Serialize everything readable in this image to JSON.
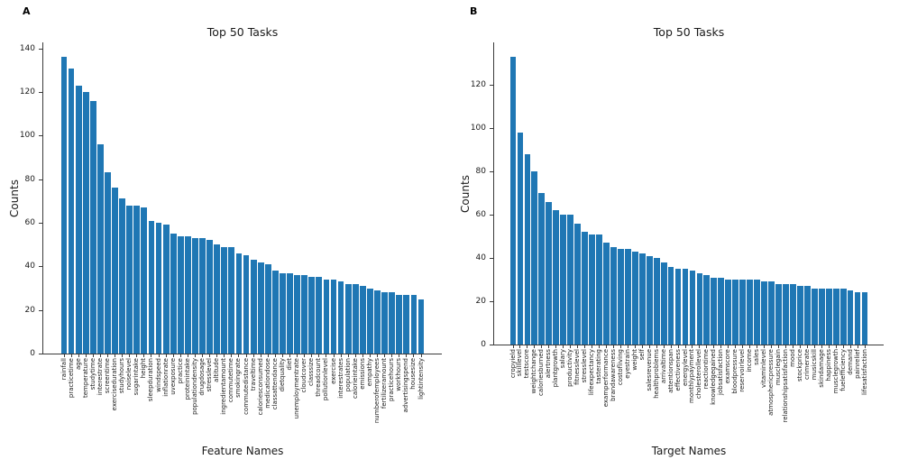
{
  "figure_meta": {
    "background": "#ffffff",
    "bar_color": "#1f77b4"
  },
  "chart_data": [
    {
      "type": "bar",
      "corner_label": "A",
      "title": "Top 50 Tasks",
      "xlabel": "Feature Names",
      "ylabel": "Counts",
      "grid": false,
      "legend": null,
      "yticks": [
        0,
        20,
        40,
        60,
        80,
        100,
        120,
        140
      ],
      "ylim": [
        0,
        142.8
      ],
      "bar_color": "#1f77b4",
      "categories": [
        "rainfall",
        "practicetime",
        "age",
        "temperature",
        "studytime",
        "interestrate",
        "screentime",
        "exerciseduration",
        "studyhours",
        "noiselevel",
        "sugarintake",
        "height",
        "sleepduration",
        "windspeed",
        "inflationrate",
        "uvexposure",
        "practice",
        "proteinintake",
        "populationdensity",
        "drugdosage",
        "stresslevel",
        "altitude",
        "ingredientamount",
        "commutetime",
        "smokingrate",
        "commutedistance",
        "traveltime",
        "caloriesconsumed",
        "medicationdose",
        "classattendance",
        "dietquality",
        "diet",
        "unemploymentrate",
        "cloudcover",
        "classsize",
        "threadcount",
        "pollutionlevel",
        "exercise",
        "interestrates",
        "population",
        "calorieintake",
        "emissions",
        "empathy",
        "numberofemployees",
        "fertilizeramount",
        "practicehours",
        "workhours",
        "advertisingspend",
        "housesize",
        "lightintensity"
      ],
      "values": [
        136,
        131,
        123,
        120,
        116,
        96,
        83,
        76,
        71,
        68,
        68,
        67,
        61,
        60,
        59,
        55,
        54,
        54,
        53,
        53,
        52,
        50,
        49,
        49,
        46,
        45,
        43,
        42,
        41,
        38,
        37,
        37,
        36,
        36,
        35,
        35,
        34,
        34,
        33,
        32,
        32,
        31,
        30,
        29,
        28,
        28,
        27,
        27,
        27,
        25
      ]
    },
    {
      "type": "bar",
      "corner_label": "B",
      "title": "Top 50 Tasks",
      "xlabel": "Target Names",
      "ylabel": "Counts",
      "grid": false,
      "legend": null,
      "yticks": [
        0,
        20,
        40,
        60,
        80,
        100,
        120
      ],
      "ylim": [
        0,
        139.7
      ],
      "bar_color": "#1f77b4",
      "categories": [
        "cropyield",
        "skilllevel",
        "testscore",
        "weightchange",
        "caloriesburned",
        "alertness",
        "plantgrowth",
        "salary",
        "productivity",
        "fitnesslevel",
        "stresslevel",
        "lifeexpectancy",
        "tasterating",
        "examperformance",
        "brandawareness",
        "costofliving",
        "eyestrain",
        "weight",
        "self",
        "salesrevenue",
        "healthproblems",
        "arrivaltime",
        "attentionspan",
        "effectiveness",
        "energylevel",
        "monthlypayment",
        "cholesterollevel",
        "reactiontime",
        "knowledgegained",
        "jobsatisfaction",
        "examscore",
        "bloodpressure",
        "reservoirlevel",
        "income",
        "sales",
        "vitaminlevel",
        "atmosphericpressure",
        "musclegain",
        "relationshipsatisfaction",
        "mood",
        "stockprice",
        "crimerate",
        "musicskill",
        "skindamage",
        "happiness",
        "musclegrowth",
        "fuelefficiency",
        "demand",
        "painrelief",
        "lifesatisfaction"
      ],
      "values": [
        133,
        98,
        88,
        80,
        70,
        66,
        62,
        60,
        60,
        56,
        52,
        51,
        51,
        47,
        45,
        44,
        44,
        43,
        42,
        41,
        40,
        38,
        36,
        35,
        35,
        34,
        33,
        32,
        31,
        31,
        30,
        30,
        30,
        30,
        30,
        29,
        29,
        28,
        28,
        28,
        27,
        27,
        26,
        26,
        26,
        26,
        26,
        25,
        24,
        24
      ]
    }
  ]
}
